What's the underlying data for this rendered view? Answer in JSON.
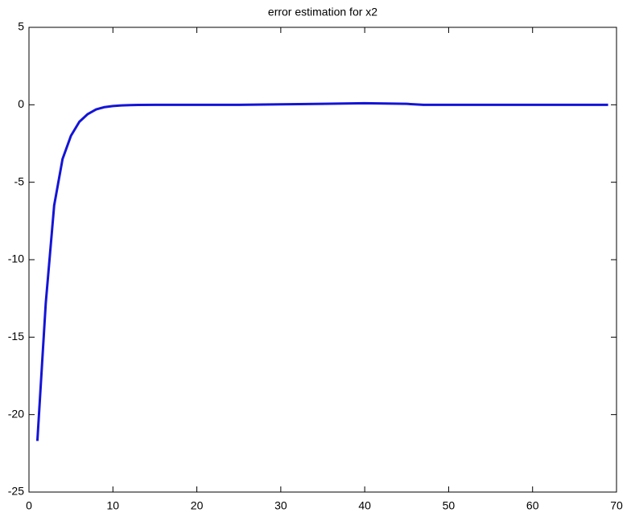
{
  "chart_data": {
    "type": "line",
    "title": "error estimation for x2",
    "x": [
      1,
      2,
      3,
      4,
      5,
      6,
      7,
      8,
      9,
      10,
      11,
      12,
      13,
      15,
      20,
      25,
      30,
      35,
      40,
      45,
      47,
      50,
      55,
      60,
      65,
      69
    ],
    "values": [
      -21.7,
      -12.8,
      -6.5,
      -3.5,
      -2.0,
      -1.1,
      -0.6,
      -0.3,
      -0.15,
      -0.08,
      -0.04,
      -0.02,
      -0.01,
      0,
      0,
      0,
      0.03,
      0.06,
      0.1,
      0.06,
      0,
      0,
      0,
      0,
      0,
      0
    ],
    "color": "#1414d8",
    "xlim": [
      0,
      70
    ],
    "xticks": [
      0,
      10,
      20,
      30,
      40,
      50,
      60,
      70
    ],
    "ylim": [
      -25,
      5
    ],
    "yticks": [
      -25,
      -20,
      -15,
      -10,
      -5,
      0,
      5
    ],
    "grid": false
  }
}
